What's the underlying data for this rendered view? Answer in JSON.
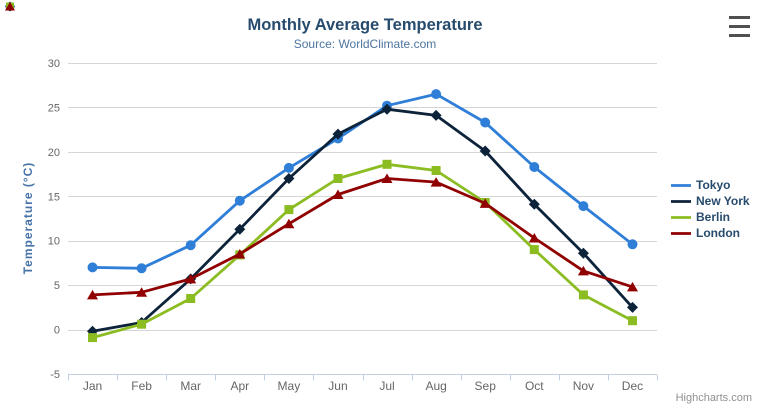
{
  "header": {
    "title": "Monthly Average Temperature",
    "subtitle": "Source: WorldClimate.com"
  },
  "icons": {
    "export_menu": "hamburger"
  },
  "credits": {
    "label": "Highcharts.com"
  },
  "colors": {
    "title": "#274b6d",
    "subtitle": "#4d759e",
    "grid": "#d6d6d6",
    "axis_line": "#c0d0e0",
    "axis_label": "#666666",
    "yaxis_title": "#4572a7",
    "legend_text": "#274b6d",
    "credits": "#909090",
    "export_icon": "#505050"
  },
  "chart_data": {
    "type": "line",
    "title": "Monthly Average Temperature",
    "subtitle": "Source: WorldClimate.com",
    "xlabel": "",
    "ylabel": "Temperature (°C)",
    "ylim": [
      -5,
      30
    ],
    "yticks": [
      -5,
      0,
      5,
      10,
      15,
      20,
      25,
      30
    ],
    "grid": true,
    "legend_position": "right",
    "categories": [
      "Jan",
      "Feb",
      "Mar",
      "Apr",
      "May",
      "Jun",
      "Jul",
      "Aug",
      "Sep",
      "Oct",
      "Nov",
      "Dec"
    ],
    "series": [
      {
        "name": "Tokyo",
        "color": "#2f7ed8",
        "marker": "circle",
        "values": [
          7.0,
          6.9,
          9.5,
          14.5,
          18.2,
          21.5,
          25.2,
          26.5,
          23.3,
          18.3,
          13.9,
          9.6
        ]
      },
      {
        "name": "New York",
        "color": "#0d233a",
        "marker": "diamond",
        "values": [
          -0.2,
          0.8,
          5.7,
          11.3,
          17.0,
          22.0,
          24.8,
          24.1,
          20.1,
          14.1,
          8.6,
          2.5
        ]
      },
      {
        "name": "Berlin",
        "color": "#8bbc21",
        "marker": "square",
        "values": [
          -0.9,
          0.6,
          3.5,
          8.4,
          13.5,
          17.0,
          18.6,
          17.9,
          14.3,
          9.0,
          3.9,
          1.0
        ]
      },
      {
        "name": "London",
        "color": "#910000",
        "marker": "triangle",
        "values": [
          3.9,
          4.2,
          5.7,
          8.5,
          11.9,
          15.2,
          17.0,
          16.6,
          14.2,
          10.3,
          6.6,
          4.8
        ]
      }
    ]
  }
}
